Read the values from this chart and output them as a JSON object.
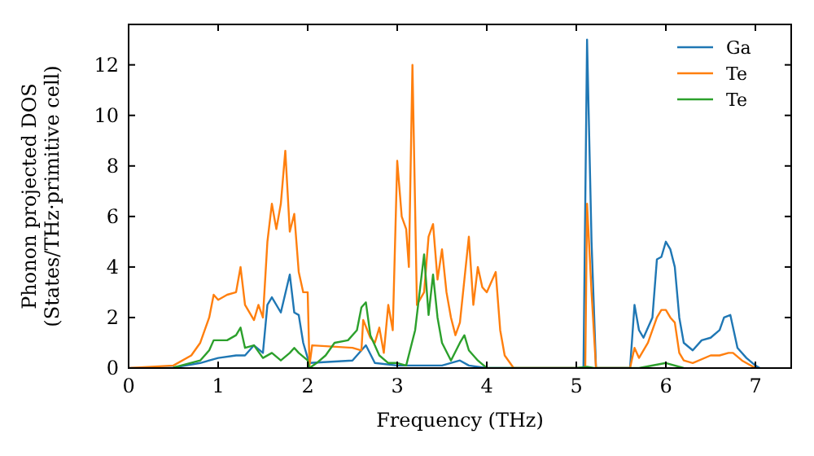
{
  "chart_data": {
    "type": "line",
    "xlabel": "Frequency (THz)",
    "ylabel": "Phonon projected DOS\n(States/THz·primitive cell)",
    "xlim": [
      0,
      7.4
    ],
    "ylim": [
      0,
      13.6
    ],
    "xticks": [
      0,
      1,
      2,
      3,
      4,
      5,
      6,
      7
    ],
    "yticks": [
      0,
      2,
      4,
      6,
      8,
      10,
      12
    ],
    "legend": "top right",
    "grid": false,
    "marker": "none",
    "line_style": "solid",
    "series": [
      {
        "name": "Ga",
        "color": "#1f77b4",
        "x": [
          0,
          0.5,
          0.8,
          1.0,
          1.2,
          1.3,
          1.4,
          1.5,
          1.55,
          1.6,
          1.7,
          1.8,
          1.85,
          1.9,
          1.95,
          2.0,
          2.02,
          2.5,
          2.65,
          2.75,
          3.0,
          3.5,
          3.7,
          3.8,
          4.0,
          5.0,
          5.08,
          5.12,
          5.17,
          5.22,
          5.6,
          5.65,
          5.7,
          5.75,
          5.85,
          5.9,
          5.95,
          6.0,
          6.05,
          6.1,
          6.15,
          6.2,
          6.3,
          6.4,
          6.5,
          6.6,
          6.65,
          6.72,
          6.8,
          6.9,
          7.0,
          7.05
        ],
        "values": [
          0,
          0.02,
          0.2,
          0.4,
          0.5,
          0.5,
          0.9,
          0.6,
          2.5,
          2.8,
          2.2,
          3.7,
          2.2,
          2.1,
          1.0,
          0.4,
          0.2,
          0.3,
          0.9,
          0.2,
          0.1,
          0.1,
          0.3,
          0.1,
          0,
          0,
          0,
          13.0,
          5,
          0,
          0,
          2.5,
          1.5,
          1.2,
          2.0,
          4.3,
          4.4,
          5.0,
          4.7,
          4.0,
          2.0,
          1.0,
          0.7,
          1.1,
          1.2,
          1.5,
          2.0,
          2.1,
          0.8,
          0.4,
          0.1,
          0
        ]
      },
      {
        "name": "Te",
        "color": "#ff7f0e",
        "x": [
          0,
          0.5,
          0.7,
          0.8,
          0.9,
          0.95,
          1.0,
          1.1,
          1.2,
          1.25,
          1.3,
          1.4,
          1.45,
          1.5,
          1.55,
          1.6,
          1.65,
          1.7,
          1.75,
          1.8,
          1.85,
          1.9,
          1.95,
          2.0,
          2.02,
          2.05,
          2.5,
          2.6,
          2.62,
          2.7,
          2.75,
          2.8,
          2.85,
          2.9,
          2.95,
          3.0,
          3.05,
          3.1,
          3.13,
          3.17,
          3.22,
          3.3,
          3.35,
          3.4,
          3.45,
          3.5,
          3.55,
          3.6,
          3.65,
          3.7,
          3.8,
          3.85,
          3.9,
          3.95,
          4.0,
          4.1,
          4.15,
          4.2,
          4.3,
          5.0,
          5.1,
          5.12,
          5.17,
          5.22,
          5.6,
          5.65,
          5.7,
          5.8,
          5.9,
          5.95,
          6.0,
          6.05,
          6.1,
          6.15,
          6.2,
          6.3,
          6.5,
          6.6,
          6.7,
          6.75,
          6.85,
          7.0
        ],
        "values": [
          0,
          0.1,
          0.5,
          1.0,
          2.0,
          2.9,
          2.7,
          2.9,
          3.0,
          4.0,
          2.5,
          1.9,
          2.5,
          2.0,
          5.0,
          6.5,
          5.5,
          6.5,
          8.6,
          5.4,
          6.1,
          3.8,
          3.0,
          3.0,
          0.1,
          0.9,
          0.8,
          0.7,
          1.9,
          1.2,
          1.0,
          1.6,
          0.6,
          2.5,
          1.5,
          8.2,
          6.0,
          5.5,
          4.0,
          12.0,
          2.5,
          3.0,
          5.2,
          5.7,
          3.5,
          4.7,
          3.0,
          2.0,
          1.3,
          1.8,
          5.2,
          2.5,
          4.0,
          3.2,
          3.0,
          3.8,
          1.5,
          0.5,
          0,
          0,
          0,
          6.5,
          3,
          0,
          0,
          0.8,
          0.4,
          1.0,
          2.0,
          2.3,
          2.3,
          2.0,
          1.8,
          0.6,
          0.3,
          0.2,
          0.5,
          0.5,
          0.6,
          0.6,
          0.3,
          0
        ]
      },
      {
        "name": "Te",
        "color": "#2ca02c",
        "x": [
          0.5,
          0.8,
          0.9,
          0.95,
          1.1,
          1.2,
          1.25,
          1.3,
          1.4,
          1.5,
          1.6,
          1.7,
          1.8,
          1.85,
          1.9,
          2.0,
          2.02,
          2.1,
          2.2,
          2.3,
          2.45,
          2.55,
          2.6,
          2.65,
          2.7,
          2.8,
          2.9,
          3.0,
          3.1,
          3.2,
          3.25,
          3.3,
          3.35,
          3.4,
          3.45,
          3.5,
          3.6,
          3.7,
          3.75,
          3.8,
          3.9,
          4.0,
          5.0,
          5.12,
          5.2,
          5.7,
          6.0,
          6.2
        ],
        "values": [
          0.02,
          0.3,
          0.7,
          1.1,
          1.1,
          1.3,
          1.6,
          0.8,
          0.9,
          0.4,
          0.6,
          0.3,
          0.6,
          0.8,
          0.6,
          0.3,
          0,
          0.2,
          0.5,
          1.0,
          1.1,
          1.5,
          2.4,
          2.6,
          1.3,
          0.5,
          0.2,
          0.2,
          0.1,
          1.5,
          3.0,
          4.5,
          2.1,
          3.7,
          2.0,
          1.0,
          0.3,
          1.0,
          1.3,
          0.7,
          0.3,
          0,
          0,
          0.05,
          0,
          0,
          0.2,
          0
        ]
      }
    ]
  }
}
